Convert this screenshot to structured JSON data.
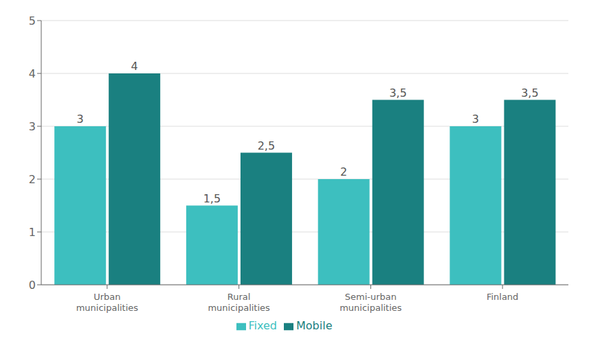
{
  "chart_data": {
    "type": "bar",
    "categories": [
      "Urban\nmunicipalities",
      "Rural\nmunicipalities",
      "Semi-urban\nmunicipalities",
      "Finland"
    ],
    "series": [
      {
        "name": "Fixed",
        "color": "#3dbfbf",
        "values": [
          3.0,
          1.5,
          2.0,
          3.0
        ],
        "value_labels": [
          "3",
          "1,5",
          "2",
          "3"
        ]
      },
      {
        "name": "Mobile",
        "color": "#1a8080",
        "values": [
          4.0,
          2.5,
          3.5,
          3.5
        ],
        "value_labels": [
          "4",
          "2,5",
          "3,5",
          "3,5"
        ]
      }
    ],
    "ylim": [
      0,
      5
    ],
    "yticks": [
      0,
      1,
      2,
      3,
      4,
      5
    ],
    "grid": true,
    "legend": "bottom",
    "data_labels": true
  }
}
